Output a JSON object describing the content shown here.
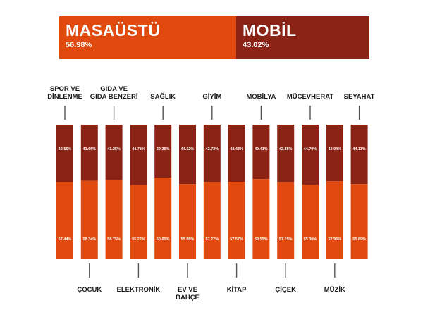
{
  "header": {
    "left": {
      "name": "MASAÜSTÜ",
      "pct": "56.98%",
      "value": 56.98,
      "color": "#e04a0e"
    },
    "right": {
      "name": "MOBİL",
      "pct": "43.02%",
      "value": 43.02,
      "color": "#8b2216"
    }
  },
  "chart_data": {
    "type": "bar",
    "stacked": true,
    "categories": [
      "SPOR VE DİNLENME",
      "ÇOCUK",
      "GIDA VE GIDA BENZERİ",
      "ELEKTRONİK",
      "SAĞLIK",
      "EV VE BAHÇE",
      "GİYİM",
      "KİTAP",
      "MOBİLYA",
      "ÇİÇEK",
      "MÜCEVHERAT",
      "MÜZİK",
      "SEYAHAT"
    ],
    "category_lines": [
      [
        "SPOR VE",
        "DİNLENME"
      ],
      [
        "ÇOCUK"
      ],
      [
        "GIDA VE",
        "GIDA BENZERİ"
      ],
      [
        "ELEKTRONİK"
      ],
      [
        "SAĞLIK"
      ],
      [
        "EV VE",
        "BAHÇE"
      ],
      [
        "GİYİM"
      ],
      [
        "KİTAP"
      ],
      [
        "MOBİLYA"
      ],
      [
        "ÇİÇEK"
      ],
      [
        "MÜCEVHERAT"
      ],
      [
        "MÜZİK"
      ],
      [
        "SEYAHAT"
      ]
    ],
    "label_positions": [
      "top",
      "bottom",
      "top",
      "bottom",
      "top",
      "bottom",
      "top",
      "bottom",
      "top",
      "bottom",
      "top",
      "bottom",
      "top"
    ],
    "series": [
      {
        "name": "MASAÜSTÜ",
        "color": "#e04a0e",
        "values": [
          57.44,
          58.34,
          58.75,
          55.22,
          60.65,
          55.88,
          57.27,
          57.57,
          59.59,
          57.15,
          55.3,
          57.96,
          55.89
        ],
        "labels": [
          "57.44%",
          "58.34%",
          "58.75%",
          "55.22%",
          "60.65%",
          "55.88%",
          "57.27%",
          "57.57%",
          "59.59%",
          "57.15%",
          "55.30%",
          "57.96%",
          "55.89%"
        ]
      },
      {
        "name": "MOBİL",
        "color": "#8b2216",
        "values": [
          42.56,
          41.66,
          41.25,
          44.78,
          39.35,
          44.12,
          42.73,
          42.43,
          40.41,
          42.85,
          44.7,
          42.04,
          44.11
        ],
        "labels": [
          "42.56%",
          "41.66%",
          "41.25%",
          "44.78%",
          "39.35%",
          "44.12%",
          "42.73%",
          "42.43%",
          "40.41%",
          "42.85%",
          "44.70%",
          "42.04%",
          "44.11%"
        ]
      }
    ],
    "ylim": [
      0,
      100
    ],
    "grid": false,
    "legend": "top"
  }
}
